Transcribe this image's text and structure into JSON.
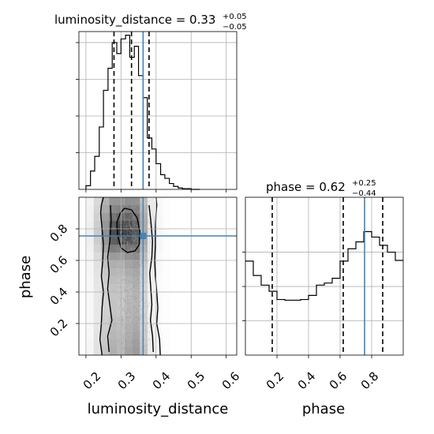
{
  "chart_data": {
    "type": "corner",
    "parameters": [
      "luminosity_distance",
      "phase"
    ],
    "panels": [
      {
        "kind": "histogram",
        "param": "luminosity_distance",
        "title": {
          "label": "luminosity_distance = 0.33",
          "plus": "+0.05",
          "minus": "−0.05"
        },
        "median": 0.33,
        "quantiles": [
          0.28,
          0.33,
          0.38
        ],
        "truth": 0.363,
        "xlim": [
          0.18,
          0.63
        ],
        "ylim": [
          0,
          0.215
        ],
        "bin_edges": [
          0.2,
          0.213,
          0.225,
          0.238,
          0.25,
          0.263,
          0.275,
          0.288,
          0.3,
          0.313,
          0.325,
          0.338,
          0.35,
          0.363,
          0.375,
          0.388,
          0.4,
          0.413,
          0.425,
          0.438,
          0.45,
          0.463,
          0.475,
          0.488,
          0.5,
          0.513,
          0.525
        ],
        "counts": [
          0.005,
          0.025,
          0.045,
          0.085,
          0.135,
          0.165,
          0.2,
          0.185,
          0.205,
          0.21,
          0.18,
          0.195,
          0.155,
          0.125,
          0.07,
          0.055,
          0.035,
          0.02,
          0.015,
          0.008,
          0.004,
          0.002,
          0.001,
          0.001,
          0.0,
          0.0
        ]
      },
      {
        "kind": "histogram",
        "param": "phase",
        "title": {
          "label": "phase = 0.62",
          "plus": "+0.25",
          "minus": "−0.44"
        },
        "median": 0.62,
        "quantiles": [
          0.17,
          0.62,
          0.87
        ],
        "truth": 0.755,
        "xlim": [
          0.0,
          1.0
        ],
        "ylim": [
          0,
          0.23
        ],
        "bin_edges": [
          0.0,
          0.05,
          0.1,
          0.15,
          0.2,
          0.25,
          0.3,
          0.35,
          0.4,
          0.45,
          0.5,
          0.55,
          0.6,
          0.65,
          0.7,
          0.75,
          0.8,
          0.85,
          0.9,
          0.95,
          1.0
        ],
        "counts": [
          0.137,
          0.116,
          0.102,
          0.093,
          0.081,
          0.08,
          0.08,
          0.081,
          0.087,
          0.102,
          0.105,
          0.112,
          0.137,
          0.155,
          0.165,
          0.18,
          0.172,
          0.16,
          0.15,
          0.138
        ]
      },
      {
        "kind": "2d",
        "x_param": "luminosity_distance",
        "y_param": "phase",
        "xlim": [
          0.18,
          0.63
        ],
        "ylim": [
          0.0,
          1.0
        ],
        "truth": {
          "x": 0.363,
          "y": 0.755
        },
        "x_bin_edges": [
          0.2,
          0.222,
          0.244,
          0.266,
          0.288,
          0.31,
          0.332,
          0.354,
          0.376,
          0.398,
          0.42,
          0.442
        ],
        "y_bin_edges": [
          0.0,
          0.05,
          0.1,
          0.15,
          0.2,
          0.25,
          0.3,
          0.35,
          0.4,
          0.45,
          0.5,
          0.55,
          0.6,
          0.65,
          0.7,
          0.75,
          0.8,
          0.85,
          0.9,
          0.95,
          1.0
        ],
        "density": [
          [
            0.05,
            0.15,
            0.3,
            0.4,
            0.35,
            0.45,
            0.5,
            0.3,
            0.1,
            0.03,
            0.01
          ],
          [
            0.05,
            0.15,
            0.28,
            0.38,
            0.35,
            0.42,
            0.48,
            0.28,
            0.1,
            0.03,
            0.01
          ],
          [
            0.04,
            0.14,
            0.26,
            0.36,
            0.33,
            0.4,
            0.45,
            0.26,
            0.09,
            0.03,
            0.01
          ],
          [
            0.04,
            0.13,
            0.25,
            0.34,
            0.32,
            0.38,
            0.42,
            0.25,
            0.09,
            0.02,
            0.01
          ],
          [
            0.04,
            0.12,
            0.24,
            0.32,
            0.3,
            0.36,
            0.4,
            0.24,
            0.08,
            0.02,
            0.01
          ],
          [
            0.04,
            0.12,
            0.23,
            0.3,
            0.28,
            0.35,
            0.38,
            0.23,
            0.08,
            0.02,
            0.01
          ],
          [
            0.04,
            0.12,
            0.22,
            0.3,
            0.28,
            0.34,
            0.37,
            0.22,
            0.08,
            0.02,
            0.01
          ],
          [
            0.04,
            0.12,
            0.22,
            0.29,
            0.28,
            0.33,
            0.37,
            0.22,
            0.08,
            0.02,
            0.01
          ],
          [
            0.04,
            0.12,
            0.23,
            0.3,
            0.29,
            0.34,
            0.38,
            0.22,
            0.08,
            0.02,
            0.01
          ],
          [
            0.04,
            0.13,
            0.25,
            0.33,
            0.31,
            0.37,
            0.4,
            0.24,
            0.08,
            0.02,
            0.01
          ],
          [
            0.05,
            0.14,
            0.27,
            0.36,
            0.34,
            0.4,
            0.43,
            0.25,
            0.09,
            0.03,
            0.01
          ],
          [
            0.05,
            0.15,
            0.3,
            0.4,
            0.38,
            0.45,
            0.48,
            0.28,
            0.1,
            0.03,
            0.01
          ],
          [
            0.06,
            0.18,
            0.36,
            0.5,
            0.48,
            0.55,
            0.58,
            0.33,
            0.11,
            0.03,
            0.01
          ],
          [
            0.07,
            0.22,
            0.45,
            0.65,
            0.62,
            0.7,
            0.7,
            0.38,
            0.12,
            0.04,
            0.01
          ],
          [
            0.08,
            0.25,
            0.52,
            0.8,
            0.85,
            0.88,
            0.8,
            0.42,
            0.13,
            0.04,
            0.01
          ],
          [
            0.08,
            0.26,
            0.55,
            0.9,
            1.0,
            0.95,
            0.85,
            0.44,
            0.14,
            0.04,
            0.01
          ],
          [
            0.08,
            0.25,
            0.52,
            0.82,
            0.92,
            0.9,
            0.8,
            0.42,
            0.13,
            0.04,
            0.01
          ],
          [
            0.07,
            0.23,
            0.48,
            0.7,
            0.75,
            0.78,
            0.72,
            0.4,
            0.12,
            0.04,
            0.01
          ],
          [
            0.07,
            0.21,
            0.42,
            0.6,
            0.62,
            0.66,
            0.63,
            0.36,
            0.11,
            0.03,
            0.01
          ],
          [
            0.06,
            0.19,
            0.38,
            0.52,
            0.52,
            0.56,
            0.55,
            0.32,
            0.1,
            0.03,
            0.01
          ]
        ],
        "contours": [
          {
            "level": "outer",
            "x": [
              0.246,
              0.24,
              0.244,
              0.246,
              0.25,
              0.244,
              0.248,
              0.25,
              0.246,
              0.242,
              0.244,
              0.25
            ],
            "y": [
              0.0,
              0.1,
              0.2,
              0.3,
              0.4,
              0.5,
              0.6,
              0.7,
              0.8,
              0.9,
              0.95,
              1.0
            ],
            "x2": [
              0.412,
              0.41,
              0.402,
              0.405,
              0.402,
              0.398,
              0.396,
              0.398,
              0.398,
              0.4,
              0.402,
              0.4
            ],
            "y2": [
              0.0,
              0.1,
              0.2,
              0.3,
              0.4,
              0.5,
              0.6,
              0.7,
              0.8,
              0.9,
              0.95,
              1.0
            ]
          },
          {
            "level": "mid",
            "x": [
              0.266,
              0.262,
              0.274,
              0.268,
              0.262,
              0.266,
              0.262,
              0.268,
              0.272,
              0.27
            ],
            "y": [
              0.02,
              0.12,
              0.22,
              0.32,
              0.42,
              0.52,
              0.62,
              0.72,
              0.85,
              0.95
            ],
            "x2": [
              0.392,
              0.39,
              0.384,
              0.388,
              0.385,
              0.382,
              0.388,
              0.39,
              0.385,
              0.38
            ],
            "y2": [
              0.02,
              0.12,
              0.22,
              0.32,
              0.42,
              0.52,
              0.62,
              0.72,
              0.85,
              0.95
            ]
          },
          {
            "level": "inner",
            "x": [
              0.31,
              0.298,
              0.288,
              0.29,
              0.3,
              0.318,
              0.34,
              0.352,
              0.354,
              0.346,
              0.33,
              0.31
            ],
            "y": [
              0.93,
              0.9,
              0.84,
              0.76,
              0.68,
              0.65,
              0.66,
              0.7,
              0.78,
              0.87,
              0.92,
              0.93
            ]
          }
        ]
      }
    ],
    "x_ticks": {
      "luminosity_distance": [
        "0.2",
        "0.3",
        "0.4",
        "0.5",
        "0.6"
      ],
      "phase": [
        "0.2",
        "0.4",
        "0.6",
        "0.8"
      ]
    },
    "y_ticks": {
      "phase": [
        "0.2",
        "0.4",
        "0.6",
        "0.8"
      ]
    },
    "xlabel": {
      "luminosity_distance": "luminosity_distance",
      "phase": "phase"
    },
    "ylabel": {
      "phase": "phase"
    },
    "colors": {
      "truth": "#4682b4",
      "hist": "#000000",
      "grid": "#b0b0b0",
      "points": "#9e9e9e"
    }
  }
}
